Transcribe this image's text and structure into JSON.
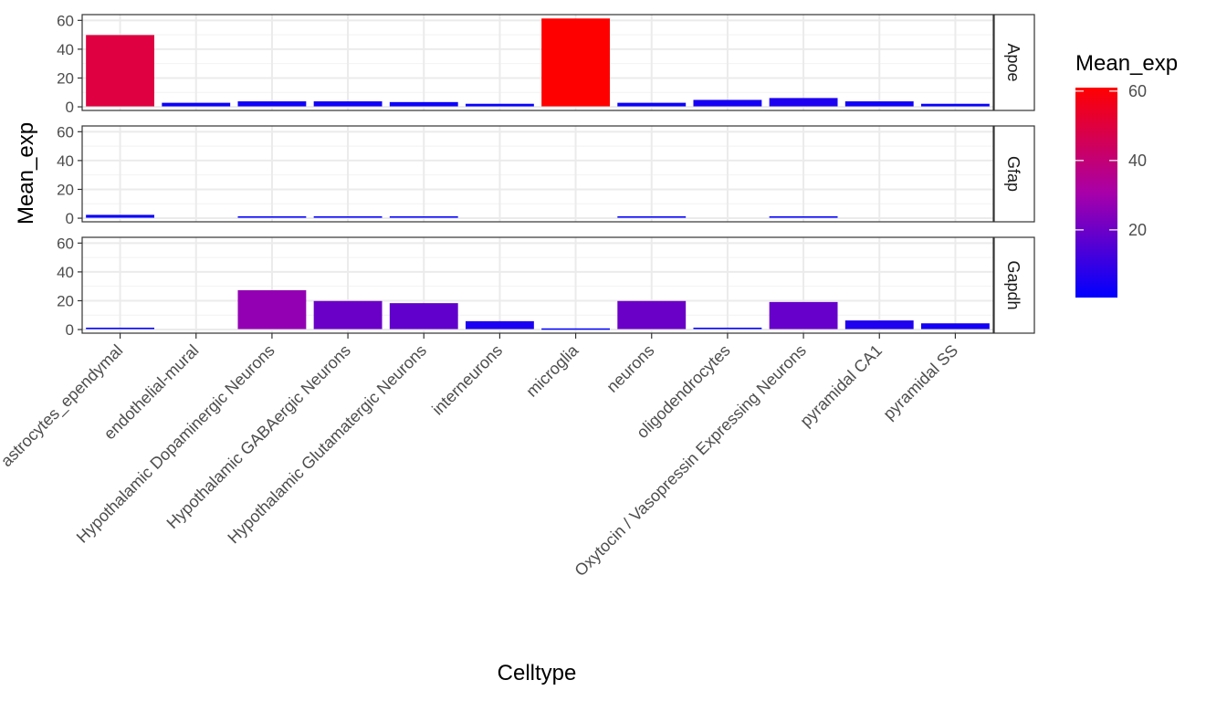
{
  "chart_data": {
    "type": "bar",
    "facets": [
      "Apoe",
      "Gfap",
      "Gapdh"
    ],
    "categories": [
      "astrocytes_ependymal",
      "endothelial-mural",
      "Hypothalamic Dopaminergic Neurons",
      "Hypothalamic GABAergic Neurons",
      "Hypothalamic Glutamatergic Neurons",
      "interneurons",
      "microglia",
      "neurons",
      "oligodendrocytes",
      "Oxytocin / Vasopressin Expressing Neurons",
      "pyramidal CA1",
      "pyramidal SS"
    ],
    "series": [
      {
        "name": "Apoe",
        "values": [
          49.5,
          2.5,
          3.5,
          3.5,
          3.0,
          1.8,
          61.0,
          2.5,
          4.5,
          5.8,
          3.5,
          1.8
        ]
      },
      {
        "name": "Gfap",
        "values": [
          2.0,
          0.0,
          1.0,
          1.0,
          1.0,
          0.0,
          0.0,
          1.0,
          0.0,
          1.0,
          0.0,
          0.0
        ]
      },
      {
        "name": "Gapdh",
        "values": [
          1.0,
          0.0,
          27.0,
          19.5,
          18.0,
          5.5,
          0.5,
          19.5,
          1.0,
          18.8,
          6.0,
          4.0
        ]
      }
    ],
    "xlabel": "Celltype",
    "ylabel": "Mean_exp",
    "ylim": [
      -2.5,
      64
    ],
    "yticks": [
      0,
      20,
      40,
      60
    ],
    "grid": true,
    "color_scale": {
      "title": "Mean_exp",
      "low": "#0000ff",
      "high": "#ff0000",
      "domain": [
        0.5,
        61.0
      ],
      "breaks": [
        20,
        40,
        60
      ]
    },
    "legend_position": "right"
  }
}
